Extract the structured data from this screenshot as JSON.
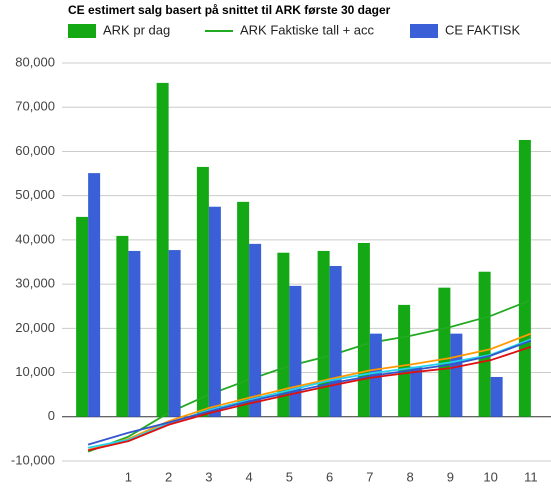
{
  "chart_data": {
    "type": "bar",
    "title": "CE estimert salg basert på snittet til ARK første 30 dager",
    "categories": [
      null,
      "1",
      "2",
      "3",
      "4",
      "5",
      "6",
      "7",
      "8",
      "9",
      "10",
      "11"
    ],
    "series": [
      {
        "name": "ARK pr dag",
        "type": "bar",
        "color": "#14a814",
        "values": [
          45200,
          40900,
          75500,
          56500,
          48600,
          37100,
          37500,
          39300,
          25300,
          29200,
          32800,
          62600
        ]
      },
      {
        "name": "ARK Faktiske tall + acc",
        "type": "line",
        "color": "#22aa22",
        "values": [
          -7900,
          -4500,
          900,
          5000,
          8400,
          11500,
          13800,
          16700,
          18300,
          20300,
          22800,
          26400
        ]
      },
      {
        "name": "CE FAKTISK",
        "type": "bar",
        "color": "#3a5fd6",
        "values": [
          55100,
          37500,
          37700,
          47500,
          39100,
          29600,
          34100,
          18800,
          11300,
          18800,
          9000,
          null
        ]
      },
      {
        "type": "line",
        "color": "#ff9900",
        "values": [
          -7500,
          -5000,
          -1000,
          2000,
          4300,
          6500,
          8500,
          10500,
          11800,
          13300,
          15300,
          18800
        ]
      },
      {
        "type": "line",
        "color": "#22d3f0",
        "values": [
          -7000,
          -5200,
          -1500,
          1500,
          3800,
          6000,
          8200,
          9800,
          11000,
          12300,
          14000,
          17500
        ]
      },
      {
        "type": "line",
        "color": "#3355cc",
        "values": [
          -6300,
          -3600,
          -1300,
          1200,
          3500,
          5500,
          7500,
          9200,
          10500,
          11800,
          13800,
          17200
        ]
      },
      {
        "type": "line",
        "color": "#dd1111",
        "values": [
          -7600,
          -5500,
          -1800,
          800,
          3000,
          5000,
          7000,
          8800,
          10000,
          11000,
          12800,
          15800
        ]
      }
    ],
    "ylim": [
      -10000,
      80000
    ],
    "yticks": [
      {
        "value": -10000,
        "label": "-10,000"
      },
      0,
      {
        "value": 10000,
        "label": "10,000"
      },
      {
        "value": 20000,
        "label": "20,000"
      },
      {
        "value": 30000,
        "label": "30,000"
      },
      {
        "value": 40000,
        "label": "40,000"
      },
      {
        "value": 50000,
        "label": "50,000"
      },
      {
        "value": 60000,
        "label": "60,000"
      },
      {
        "value": 70000,
        "label": "70,000"
      },
      {
        "value": 80000,
        "label": "80,000"
      }
    ],
    "grid": true
  }
}
